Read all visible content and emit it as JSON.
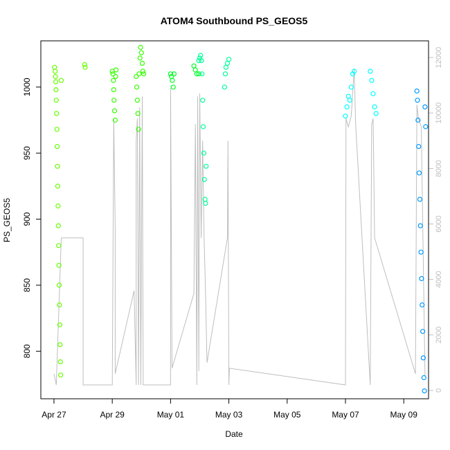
{
  "chart_data": {
    "type": "scatter",
    "title": "ATOM4 Southbound PS_GEOS5",
    "xlabel": "Date",
    "ylabel": "PS_GEOS5",
    "x_ticks": [
      "Apr 27",
      "Apr 29",
      "May 01",
      "May 03",
      "May 05",
      "May 07",
      "May 09"
    ],
    "x_range_days": [
      -0.45,
      12.85
    ],
    "ylim": [
      764,
      1035
    ],
    "y_ticks": [
      800,
      850,
      900,
      950,
      1000
    ],
    "y2lim": [
      -300,
      12600
    ],
    "y2_ticks": [
      0,
      2000,
      4000,
      6000,
      8000,
      10000,
      12000
    ],
    "y2_color": "#bebebe",
    "grid": false,
    "legend": "none",
    "series": [
      {
        "color": "#66ff00",
        "points": [
          [
            0.02,
            1015
          ],
          [
            0.04,
            1012
          ],
          [
            0.05,
            1008
          ],
          [
            0.06,
            1004
          ],
          [
            0.07,
            998
          ],
          [
            0.08,
            990
          ],
          [
            0.09,
            980
          ],
          [
            0.1,
            968
          ],
          [
            0.11,
            955
          ],
          [
            0.12,
            940
          ],
          [
            0.13,
            925
          ],
          [
            0.14,
            910
          ],
          [
            0.15,
            895
          ],
          [
            0.16,
            880
          ],
          [
            0.17,
            865
          ],
          [
            0.18,
            850
          ],
          [
            0.19,
            835
          ],
          [
            0.2,
            820
          ],
          [
            0.21,
            805
          ],
          [
            0.22,
            792
          ],
          [
            0.23,
            782
          ],
          [
            0.25,
            1005
          ],
          [
            1.05,
            1017
          ],
          [
            1.07,
            1015
          ]
        ]
      },
      {
        "color": "#33ff00",
        "points": [
          [
            2.0,
            1012
          ],
          [
            2.02,
            1010
          ],
          [
            2.04,
            1005
          ],
          [
            2.05,
            998
          ],
          [
            2.06,
            990
          ],
          [
            2.08,
            982
          ],
          [
            2.1,
            975
          ],
          [
            2.12,
            1008
          ],
          [
            2.13,
            1013
          ],
          [
            2.82,
            1008
          ],
          [
            2.84,
            1000
          ],
          [
            2.86,
            990
          ],
          [
            2.88,
            980
          ],
          [
            2.9,
            968
          ],
          [
            2.92,
            1010
          ],
          [
            2.95,
            1022
          ],
          [
            2.97,
            1030
          ],
          [
            3.0,
            1026
          ],
          [
            3.03,
            1018
          ],
          [
            3.05,
            1012
          ],
          [
            3.08,
            1010
          ]
        ]
      },
      {
        "color": "#00ff22",
        "points": [
          [
            4.0,
            1010
          ],
          [
            4.03,
            1008
          ],
          [
            4.06,
            1005
          ],
          [
            4.09,
            1000
          ],
          [
            4.12,
            1010
          ],
          [
            4.8,
            1016
          ],
          [
            4.85,
            1013
          ],
          [
            4.9,
            1010
          ],
          [
            4.97,
            1010
          ]
        ]
      },
      {
        "color": "#00ff99",
        "points": [
          [
            4.97,
            1020
          ],
          [
            5.0,
            1022
          ],
          [
            5.03,
            1024
          ],
          [
            5.06,
            1020
          ],
          [
            5.08,
            1010
          ],
          [
            5.1,
            990
          ],
          [
            5.12,
            970
          ],
          [
            5.14,
            950
          ],
          [
            5.16,
            930
          ],
          [
            5.18,
            915
          ],
          [
            5.2,
            912
          ],
          [
            5.22,
            940
          ],
          [
            5.85,
            1000
          ],
          [
            5.88,
            1010
          ],
          [
            5.9,
            1015
          ],
          [
            5.95,
            1018
          ],
          [
            6.0,
            1021
          ]
        ]
      },
      {
        "color": "#00ffff",
        "points": [
          [
            10.0,
            978
          ],
          [
            10.05,
            985
          ],
          [
            10.1,
            993
          ],
          [
            10.15,
            990
          ],
          [
            10.2,
            1000
          ],
          [
            10.25,
            1010
          ],
          [
            10.3,
            1012
          ],
          [
            10.85,
            1012
          ],
          [
            10.9,
            1005
          ],
          [
            10.95,
            995
          ],
          [
            11.0,
            985
          ],
          [
            11.05,
            980
          ]
        ]
      },
      {
        "color": "#0099ff",
        "points": [
          [
            12.45,
            997
          ],
          [
            12.47,
            990
          ],
          [
            12.49,
            975
          ],
          [
            12.51,
            955
          ],
          [
            12.53,
            935
          ],
          [
            12.55,
            915
          ],
          [
            12.57,
            895
          ],
          [
            12.59,
            875
          ],
          [
            12.61,
            855
          ],
          [
            12.63,
            835
          ],
          [
            12.65,
            815
          ],
          [
            12.67,
            795
          ],
          [
            12.69,
            780
          ],
          [
            12.71,
            770
          ],
          [
            12.73,
            985
          ],
          [
            12.75,
            970
          ]
        ]
      }
    ],
    "altitude_line": [
      [
        0.0,
        600
      ],
      [
        0.08,
        200
      ],
      [
        0.25,
        5500
      ],
      [
        1.0,
        5500
      ],
      [
        1.0,
        200
      ],
      [
        2.0,
        200
      ],
      [
        2.05,
        9800
      ],
      [
        2.1,
        5800
      ],
      [
        2.1,
        600
      ],
      [
        2.75,
        3600
      ],
      [
        2.82,
        200
      ],
      [
        2.82,
        9000
      ],
      [
        2.86,
        9800
      ],
      [
        2.9,
        200
      ],
      [
        2.94,
        10200
      ],
      [
        2.98,
        200
      ],
      [
        3.03,
        10600
      ],
      [
        3.06,
        200
      ],
      [
        4.0,
        200
      ],
      [
        4.0,
        10900
      ],
      [
        4.05,
        800
      ],
      [
        4.8,
        3500
      ],
      [
        4.85,
        9600
      ],
      [
        4.9,
        200
      ],
      [
        4.93,
        10600
      ],
      [
        4.97,
        700
      ],
      [
        4.97,
        800
      ],
      [
        5.0,
        10700
      ],
      [
        5.05,
        5500
      ],
      [
        5.1,
        9000
      ],
      [
        5.15,
        5500
      ],
      [
        5.2,
        3500
      ],
      [
        5.25,
        1000
      ],
      [
        5.95,
        5500
      ],
      [
        5.97,
        9000
      ],
      [
        6.0,
        200
      ],
      [
        6.02,
        800
      ],
      [
        10.0,
        200
      ],
      [
        10.02,
        9800
      ],
      [
        10.1,
        9500
      ],
      [
        10.2,
        9900
      ],
      [
        10.3,
        11600
      ],
      [
        10.35,
        9600
      ],
      [
        10.85,
        200
      ],
      [
        10.9,
        9600
      ],
      [
        10.95,
        9800
      ],
      [
        11.0,
        5500
      ],
      [
        12.4,
        600
      ],
      [
        12.45,
        10300
      ],
      [
        12.5,
        9800
      ],
      [
        12.6,
        9500
      ],
      [
        12.73,
        500
      ]
    ]
  }
}
